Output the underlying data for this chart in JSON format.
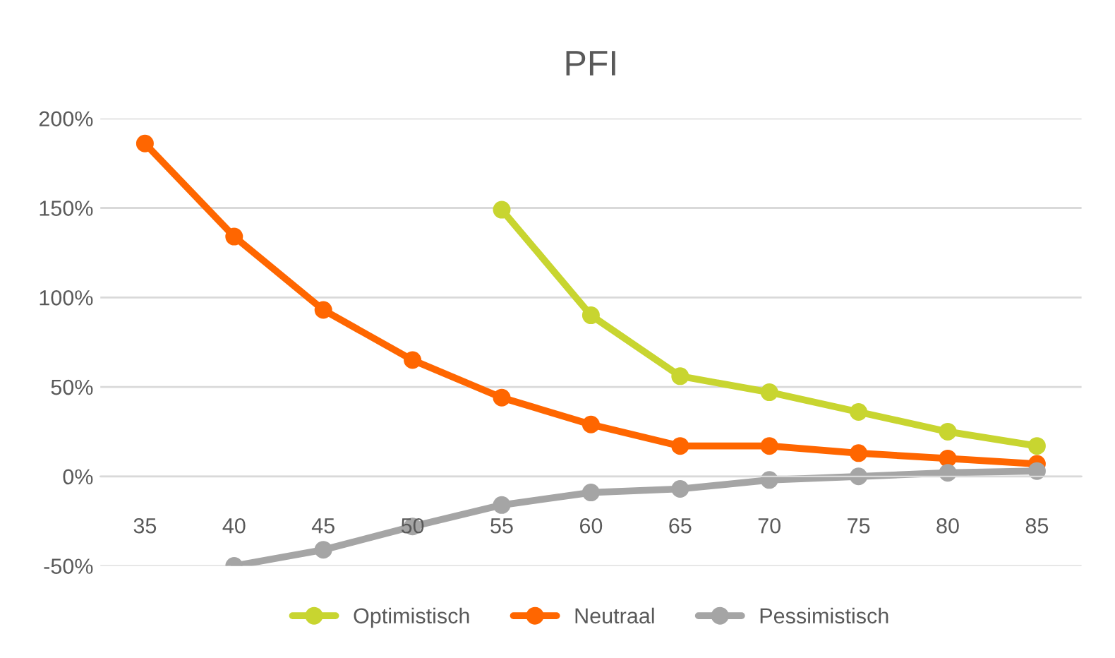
{
  "chart_data": {
    "type": "line",
    "title": "PFI",
    "categories": [
      "35",
      "40",
      "45",
      "50",
      "55",
      "60",
      "65",
      "70",
      "75",
      "80",
      "85"
    ],
    "series": [
      {
        "name": "Optimistisch",
        "color": "#c8d530",
        "values": [
          null,
          null,
          null,
          null,
          149,
          90,
          56,
          47,
          36,
          25,
          17
        ]
      },
      {
        "name": "Neutraal",
        "color": "#ff6600",
        "values": [
          186,
          134,
          93,
          65,
          44,
          29,
          17,
          17,
          13,
          10,
          7
        ]
      },
      {
        "name": "Pessimistisch",
        "color": "#a5a5a5",
        "values": [
          null,
          -50,
          -41,
          -28,
          -16,
          -9,
          -7,
          -2,
          0,
          2,
          3
        ]
      }
    ],
    "ylim": [
      -50,
      200
    ],
    "yticks": [
      {
        "value": -50,
        "label": "-50%"
      },
      {
        "value": 0,
        "label": "0%"
      },
      {
        "value": 50,
        "label": "50%"
      },
      {
        "value": 100,
        "label": "100%"
      },
      {
        "value": 150,
        "label": "150%"
      },
      {
        "value": 200,
        "label": "200%"
      }
    ],
    "grid": "y",
    "legend": "bottom",
    "marker": "circle",
    "line_style": "solid"
  }
}
